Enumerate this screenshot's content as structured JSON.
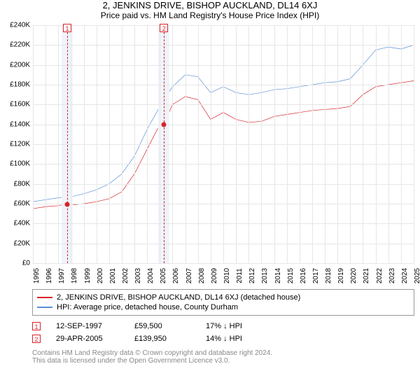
{
  "title": "2, JENKINS DRIVE, BISHOP AUCKLAND, DL14 6XJ",
  "subtitle": "Price paid vs. HM Land Registry's House Price Index (HPI)",
  "chart": {
    "type": "line",
    "ylim": [
      0,
      240000
    ],
    "ytick_step": 20000,
    "yticks": [
      0,
      20000,
      40000,
      60000,
      80000,
      100000,
      120000,
      140000,
      160000,
      180000,
      200000,
      220000,
      240000
    ],
    "ytick_labels": [
      "£0",
      "£20K",
      "£40K",
      "£60K",
      "£80K",
      "£100K",
      "£120K",
      "£140K",
      "£160K",
      "£180K",
      "£200K",
      "£220K",
      "£240K"
    ],
    "xlim": [
      1995,
      2025
    ],
    "xticks": [
      1995,
      1996,
      1997,
      1998,
      1999,
      2000,
      2001,
      2002,
      2003,
      2004,
      2005,
      2006,
      2007,
      2008,
      2009,
      2010,
      2011,
      2012,
      2013,
      2014,
      2015,
      2016,
      2017,
      2018,
      2019,
      2020,
      2021,
      2022,
      2023,
      2024,
      2025
    ],
    "grid_color": "#e6e6e6",
    "background_color": "#ffffff",
    "label_fontsize": 10,
    "series": [
      {
        "id": "property",
        "label": "2, JENKINS DRIVE, BISHOP AUCKLAND, DL14 6XJ (detached house)",
        "color": "#d8232a",
        "line_width": 2,
        "points": [
          [
            1995,
            55000
          ],
          [
            1996,
            57000
          ],
          [
            1997,
            58000
          ],
          [
            1997.7,
            59500
          ],
          [
            1998.3,
            59000
          ],
          [
            1999,
            60000
          ],
          [
            2000,
            62000
          ],
          [
            2001,
            65000
          ],
          [
            2002,
            72000
          ],
          [
            2003,
            90000
          ],
          [
            2004,
            115000
          ],
          [
            2004.8,
            135000
          ],
          [
            2005.3,
            139950
          ],
          [
            2006,
            160000
          ],
          [
            2007,
            168000
          ],
          [
            2008,
            165000
          ],
          [
            2009,
            145000
          ],
          [
            2010,
            152000
          ],
          [
            2011,
            145000
          ],
          [
            2012,
            142000
          ],
          [
            2013,
            143000
          ],
          [
            2014,
            148000
          ],
          [
            2015,
            150000
          ],
          [
            2016,
            152000
          ],
          [
            2017,
            154000
          ],
          [
            2018,
            155000
          ],
          [
            2019,
            156000
          ],
          [
            2020,
            158000
          ],
          [
            2021,
            170000
          ],
          [
            2022,
            178000
          ],
          [
            2023,
            180000
          ],
          [
            2024,
            182000
          ],
          [
            2025,
            184000
          ]
        ]
      },
      {
        "id": "hpi",
        "label": "HPI: Average price, detached house, County Durham",
        "color": "#5b8fd6",
        "line_width": 2,
        "points": [
          [
            1995,
            62000
          ],
          [
            1996,
            64000
          ],
          [
            1997,
            66000
          ],
          [
            1998,
            67000
          ],
          [
            1999,
            70000
          ],
          [
            2000,
            74000
          ],
          [
            2001,
            80000
          ],
          [
            2002,
            90000
          ],
          [
            2003,
            108000
          ],
          [
            2004,
            135000
          ],
          [
            2005,
            158000
          ],
          [
            2006,
            178000
          ],
          [
            2007,
            190000
          ],
          [
            2008,
            188000
          ],
          [
            2009,
            172000
          ],
          [
            2010,
            178000
          ],
          [
            2011,
            172000
          ],
          [
            2012,
            170000
          ],
          [
            2013,
            172000
          ],
          [
            2014,
            175000
          ],
          [
            2015,
            176000
          ],
          [
            2016,
            178000
          ],
          [
            2017,
            180000
          ],
          [
            2018,
            182000
          ],
          [
            2019,
            183000
          ],
          [
            2020,
            186000
          ],
          [
            2021,
            200000
          ],
          [
            2022,
            215000
          ],
          [
            2023,
            218000
          ],
          [
            2024,
            216000
          ],
          [
            2025,
            220000
          ]
        ]
      }
    ],
    "markers": [
      {
        "id": "1",
        "x": 1997.7,
        "price": 59500,
        "band_color": "#eff4fb",
        "line_color": "#d8232a",
        "box_border": "#d8232a",
        "point_color": "#d8232a"
      },
      {
        "id": "2",
        "x": 2005.33,
        "price": 139950,
        "band_color": "#eff4fb",
        "line_color": "#d8232a",
        "box_border": "#d8232a",
        "point_color": "#d8232a"
      }
    ]
  },
  "legend": {
    "border_color": "#999999",
    "items": [
      {
        "color": "#d8232a",
        "text": "2, JENKINS DRIVE, BISHOP AUCKLAND, DL14 6XJ (detached house)"
      },
      {
        "color": "#5b8fd6",
        "text": "HPI: Average price, detached house, County Durham"
      }
    ]
  },
  "transactions": [
    {
      "id": "1",
      "box_border": "#d8232a",
      "date": "12-SEP-1997",
      "price": "£59,500",
      "diff": "17% ↓ HPI"
    },
    {
      "id": "2",
      "box_border": "#d8232a",
      "date": "29-APR-2005",
      "price": "£139,950",
      "diff": "14% ↓ HPI"
    }
  ],
  "footer": {
    "line1": "Contains HM Land Registry data © Crown copyright and database right 2024.",
    "line2": "This data is licensed under the Open Government Licence v3.0."
  }
}
